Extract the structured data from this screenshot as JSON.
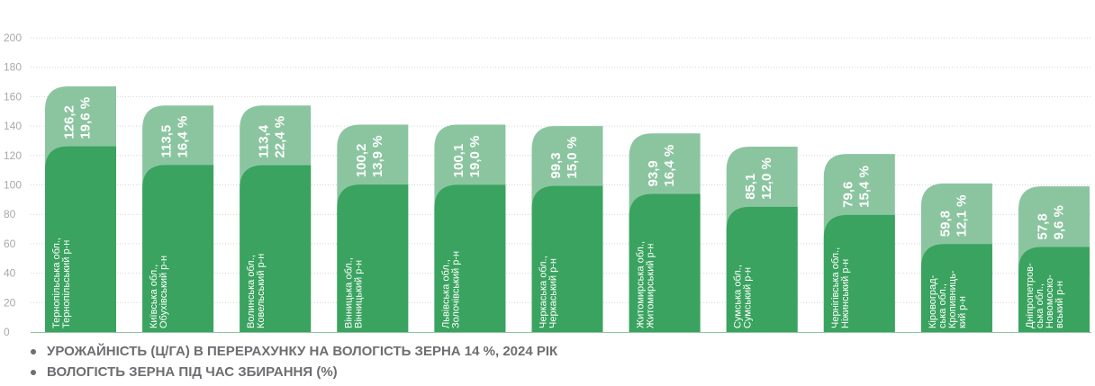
{
  "chart_data": {
    "type": "bar",
    "categories": [
      [
        "Тернопільська обл.,",
        "Тернопільський р-н"
      ],
      [
        "Київська обл.,",
        "Обухівський р-н"
      ],
      [
        "Волинська обл.,",
        "Ковельський р-н"
      ],
      [
        "Вінницька обл.,",
        "Вінницький р-н"
      ],
      [
        "Львівська обл.,",
        "Золочівський р-н"
      ],
      [
        "Черкаська обл.,",
        "Черкаський р-н"
      ],
      [
        "Житомирська обл.,",
        "Житомирський р-н"
      ],
      [
        "Сумська обл.,",
        "Сумський р-н"
      ],
      [
        "Чернігівська обл.,",
        "Ніжинський р-н"
      ],
      [
        "Кіровоград-",
        "ська обл.,",
        "Кропивниць-",
        "кий р-н"
      ],
      [
        "Дніпропетров-",
        "ська обл.,",
        "Новомоско-",
        "вський р-н"
      ]
    ],
    "series": [
      {
        "name": "УРОЖАЙНІСТЬ (Ц/ГА) В ПЕРЕРАХУНКУ НА ВОЛОГІСТЬ ЗЕРНА 14 %, 2024 РІК",
        "values": [
          126.2,
          113.5,
          113.4,
          100.2,
          100.1,
          99.3,
          93.9,
          85.1,
          79.6,
          59.8,
          57.8
        ],
        "labels": [
          "126,2",
          "113,5",
          "113,4",
          "100,2",
          "100,1",
          "99,3",
          "93,9",
          "85,1",
          "79,6",
          "59,8",
          "57,8"
        ],
        "color": "#3aa35f"
      },
      {
        "name": "ВОЛОГІСТЬ ЗЕРНА ПІД ЧАС ЗБИРАННЯ (%)",
        "values": [
          19.6,
          16.4,
          22.4,
          13.9,
          19.0,
          15.0,
          16.4,
          12.0,
          15.4,
          12.1,
          9.6
        ],
        "labels": [
          "19,6 %",
          "16,4 %",
          "22,4 %",
          "13,9 %",
          "19,0 %",
          "15,0 %",
          "16,4 %",
          "12,0 %",
          "15,4 %",
          "12,1 %",
          "9,6 %"
        ],
        "color": "#8bc5a0"
      }
    ],
    "stack_totals": [
      167,
      154,
      154,
      141,
      141,
      140,
      135,
      126,
      121,
      101,
      99
    ],
    "ylim": [
      0,
      200
    ],
    "yticks": [
      0,
      20,
      40,
      60,
      80,
      100,
      120,
      140,
      160,
      180,
      200
    ],
    "grid": true,
    "legend_position": "bottom-left"
  },
  "legend": [
    "УРОЖАЙНІСТЬ (Ц/ГА) В ПЕРЕРАХУНКУ НА ВОЛОГІСТЬ ЗЕРНА 14 %, 2024 РІК",
    "ВОЛОГІСТЬ ЗЕРНА ПІД ЧАС ЗБИРАННЯ (%)"
  ],
  "colors": {
    "grid": "#d6d6d6",
    "tick_text": "#a7a9ac",
    "axis": "#8bc5a0",
    "legend_text": "#6d6e71",
    "label_text": "#ffffff"
  }
}
